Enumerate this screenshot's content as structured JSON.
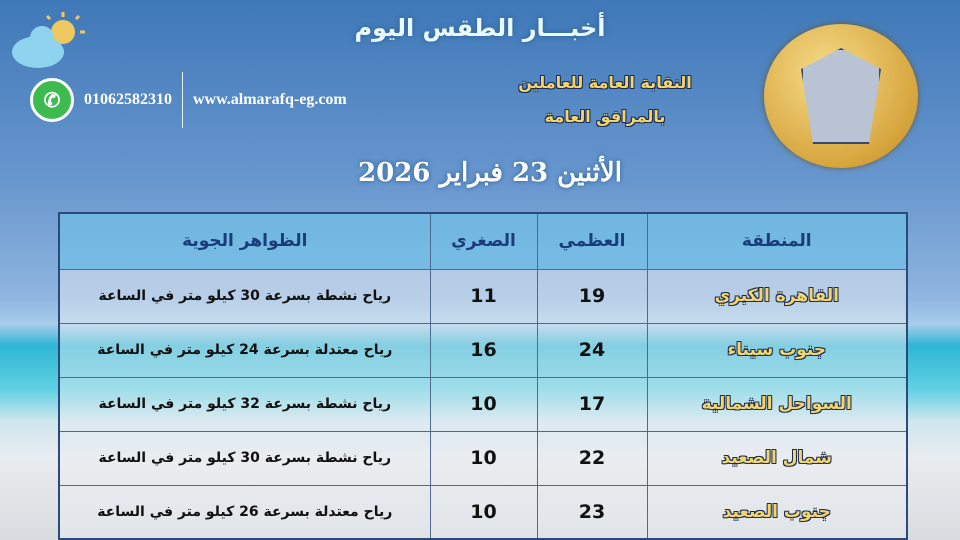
{
  "header": {
    "title": "أخبـــار الطقس اليوم",
    "org_line1": "النقابة العامة للعاملين",
    "org_line2": "بالمرافق العامة",
    "date": "الأثنين  23 فبراير 2026",
    "phone": "01062582310",
    "website": "www.almarafq-eg.com",
    "logo_text": "النقابة العامة للعاملين بالمرافق العامة"
  },
  "table": {
    "headers": [
      "المنطقة",
      "العظمي",
      "الصغري",
      "الظواهر الجوية"
    ],
    "rows": [
      {
        "region": "القاهرة الكبري",
        "max": "19",
        "min": "11",
        "desc": "رياح نشطة بسرعة 30 كيلو متر في الساعة"
      },
      {
        "region": "جنوب سيناء",
        "max": "24",
        "min": "16",
        "desc": "رياح معتدلة بسرعة 24 كيلو متر في الساعة"
      },
      {
        "region": "السواحل الشمالية",
        "max": "17",
        "min": "10",
        "desc": "رياح نشطة بسرعة 32 كيلو متر في الساعة"
      },
      {
        "region": "شمال الصعيد",
        "max": "22",
        "min": "10",
        "desc": "رياح نشطة بسرعة 30 كيلو متر في الساعة"
      },
      {
        "region": "جنوب الصعيد",
        "max": "23",
        "min": "10",
        "desc": "رياح معتدلة بسرعة 26 كيلو متر في الساعة"
      }
    ]
  },
  "icons": {
    "weather": "sun-cloud-icon",
    "contact": "whatsapp-icon"
  }
}
